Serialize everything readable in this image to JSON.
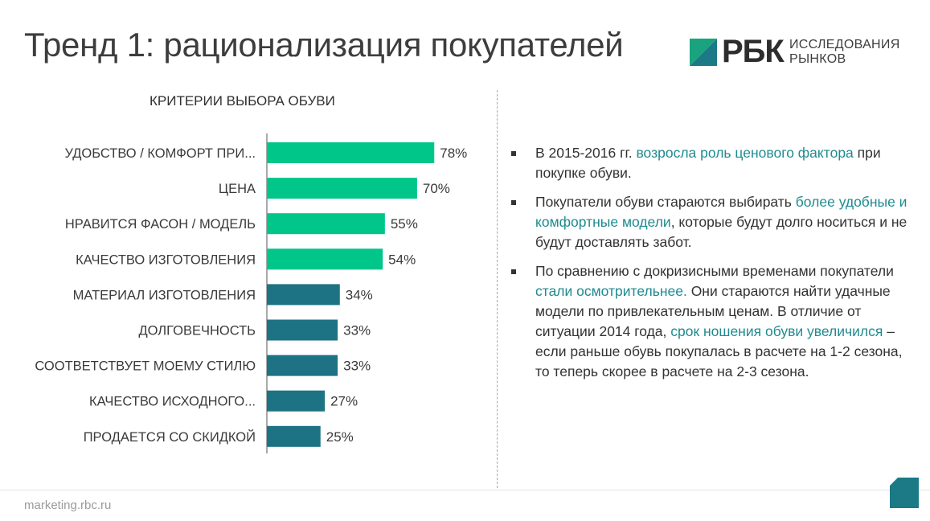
{
  "title": "Тренд 1: рационализация покупателей",
  "logo": {
    "name": "РБК",
    "line1": "ИССЛЕДОВАНИЯ",
    "line2": "РЫНКОВ"
  },
  "colors": {
    "bar_top": "#00c68a",
    "bar_rest": "#1d7384",
    "highlight": "#1f8b90",
    "logo_teal": "#1b7a86",
    "logo_green": "#1aa37f"
  },
  "chart_data": {
    "type": "bar",
    "orientation": "horizontal",
    "title": "КРИТЕРИИ ВЫБОРА ОБУВИ",
    "categories": [
      "УДОБСТВО / КОМФОРТ ПРИ...",
      "ЦЕНА",
      "НРАВИТСЯ ФАСОН / МОДЕЛЬ",
      "КАЧЕСТВО ИЗГОТОВЛЕНИЯ",
      "МАТЕРИАЛ ИЗГОТОВЛЕНИЯ",
      "ДОЛГОВЕЧНОСТЬ",
      "СООТВЕТСТВУЕТ МОЕМУ СТИЛЮ",
      "КАЧЕСТВО ИСХОДНОГО...",
      "ПРОДАЕТСЯ СО СКИДКОЙ"
    ],
    "values": [
      78,
      70,
      55,
      54,
      34,
      33,
      33,
      27,
      25
    ],
    "labels": [
      "78%",
      "70%",
      "55%",
      "54%",
      "34%",
      "33%",
      "33%",
      "27%",
      "25%"
    ],
    "highlighted_count": 4,
    "grid": false
  },
  "bullets": [
    {
      "parts": [
        {
          "text": "В 2015-2016 гг. ",
          "hl": false
        },
        {
          "text": "возросла роль ценового фактора",
          "hl": true
        },
        {
          "text": " при покупке обуви.",
          "hl": false
        }
      ]
    },
    {
      "parts": [
        {
          "text": "Покупатели обуви стараются выбирать ",
          "hl": false
        },
        {
          "text": "более удобные и комфортные модели",
          "hl": true
        },
        {
          "text": ", которые будут долго носиться и не будут доставлять забот.",
          "hl": false
        }
      ]
    },
    {
      "parts": [
        {
          "text": "По сравнению с докризисными временами покупатели ",
          "hl": false
        },
        {
          "text": "стали осмотрительнее.",
          "hl": true
        },
        {
          "text": " Они стараются найти удачные модели по привлекательным ценам. В отличие от ситуации 2014 года, ",
          "hl": false
        },
        {
          "text": "срок ношения обуви увеличился",
          "hl": true
        },
        {
          "text": " – если раньше обувь покупалась в расчете на 1-2 сезона, то теперь скорее в расчете на 2-3 сезона.",
          "hl": false
        }
      ]
    }
  ],
  "footer": "marketing.rbc.ru"
}
